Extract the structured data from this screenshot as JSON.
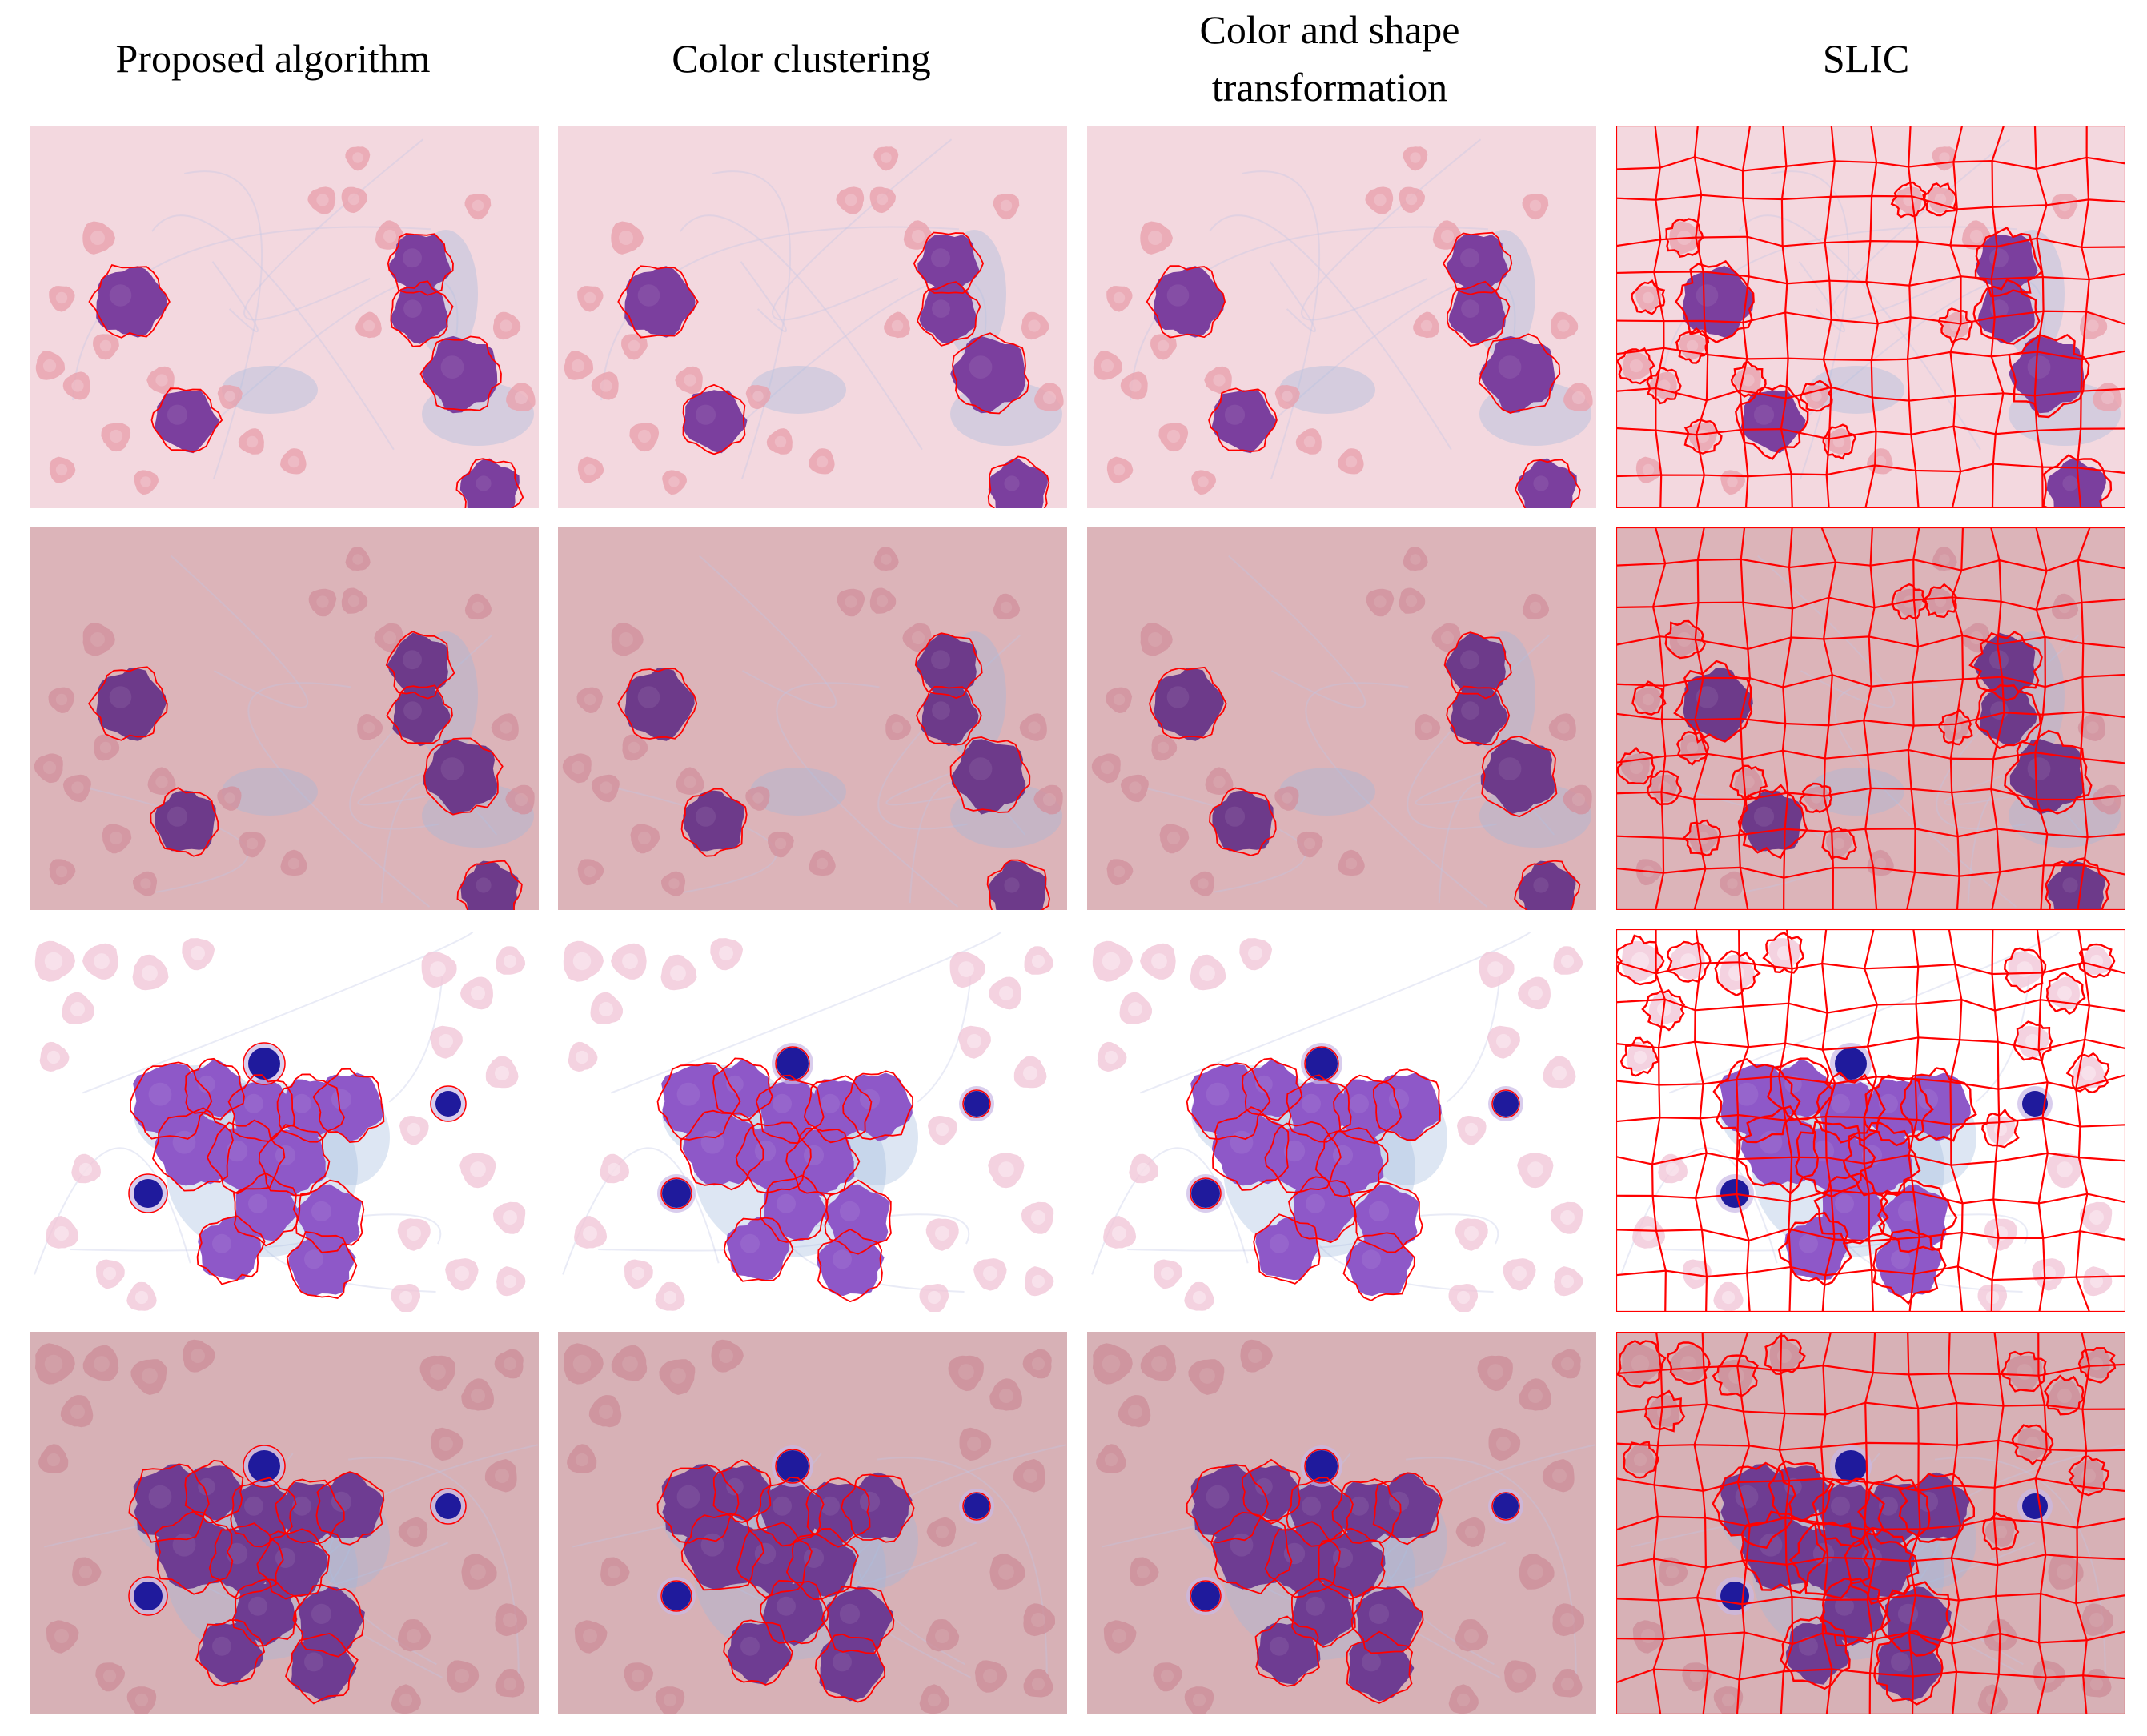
{
  "figure": {
    "columns": [
      {
        "title": "Proposed algorithm",
        "method": "proposed"
      },
      {
        "title": "Color clustering",
        "method": "clustering"
      },
      {
        "title": "Color and shape\ntransformation",
        "method": "shape"
      },
      {
        "title": "SLIC",
        "method": "slic"
      }
    ],
    "rows": [
      {
        "scene": "A",
        "bg": "#f3d8df",
        "rbc": "#e9a1ad",
        "wbc": "#7b3f9e"
      },
      {
        "scene": "A",
        "bg": "#dcb4b9",
        "rbc": "#d2919e",
        "wbc": "#6d3a8a"
      },
      {
        "scene": "B",
        "bg": "#ffffff",
        "rbc": "#f1c7d8",
        "wbc": "#8e58c8"
      },
      {
        "scene": "B",
        "bg": "#d7b1b6",
        "rbc": "#cd8f9a",
        "wbc": "#6e3c92"
      }
    ],
    "colors": {
      "outline": "#ff0000",
      "nucleus": "#1f1a9c",
      "cytoplasm_stain": "#9fb6dc"
    }
  }
}
